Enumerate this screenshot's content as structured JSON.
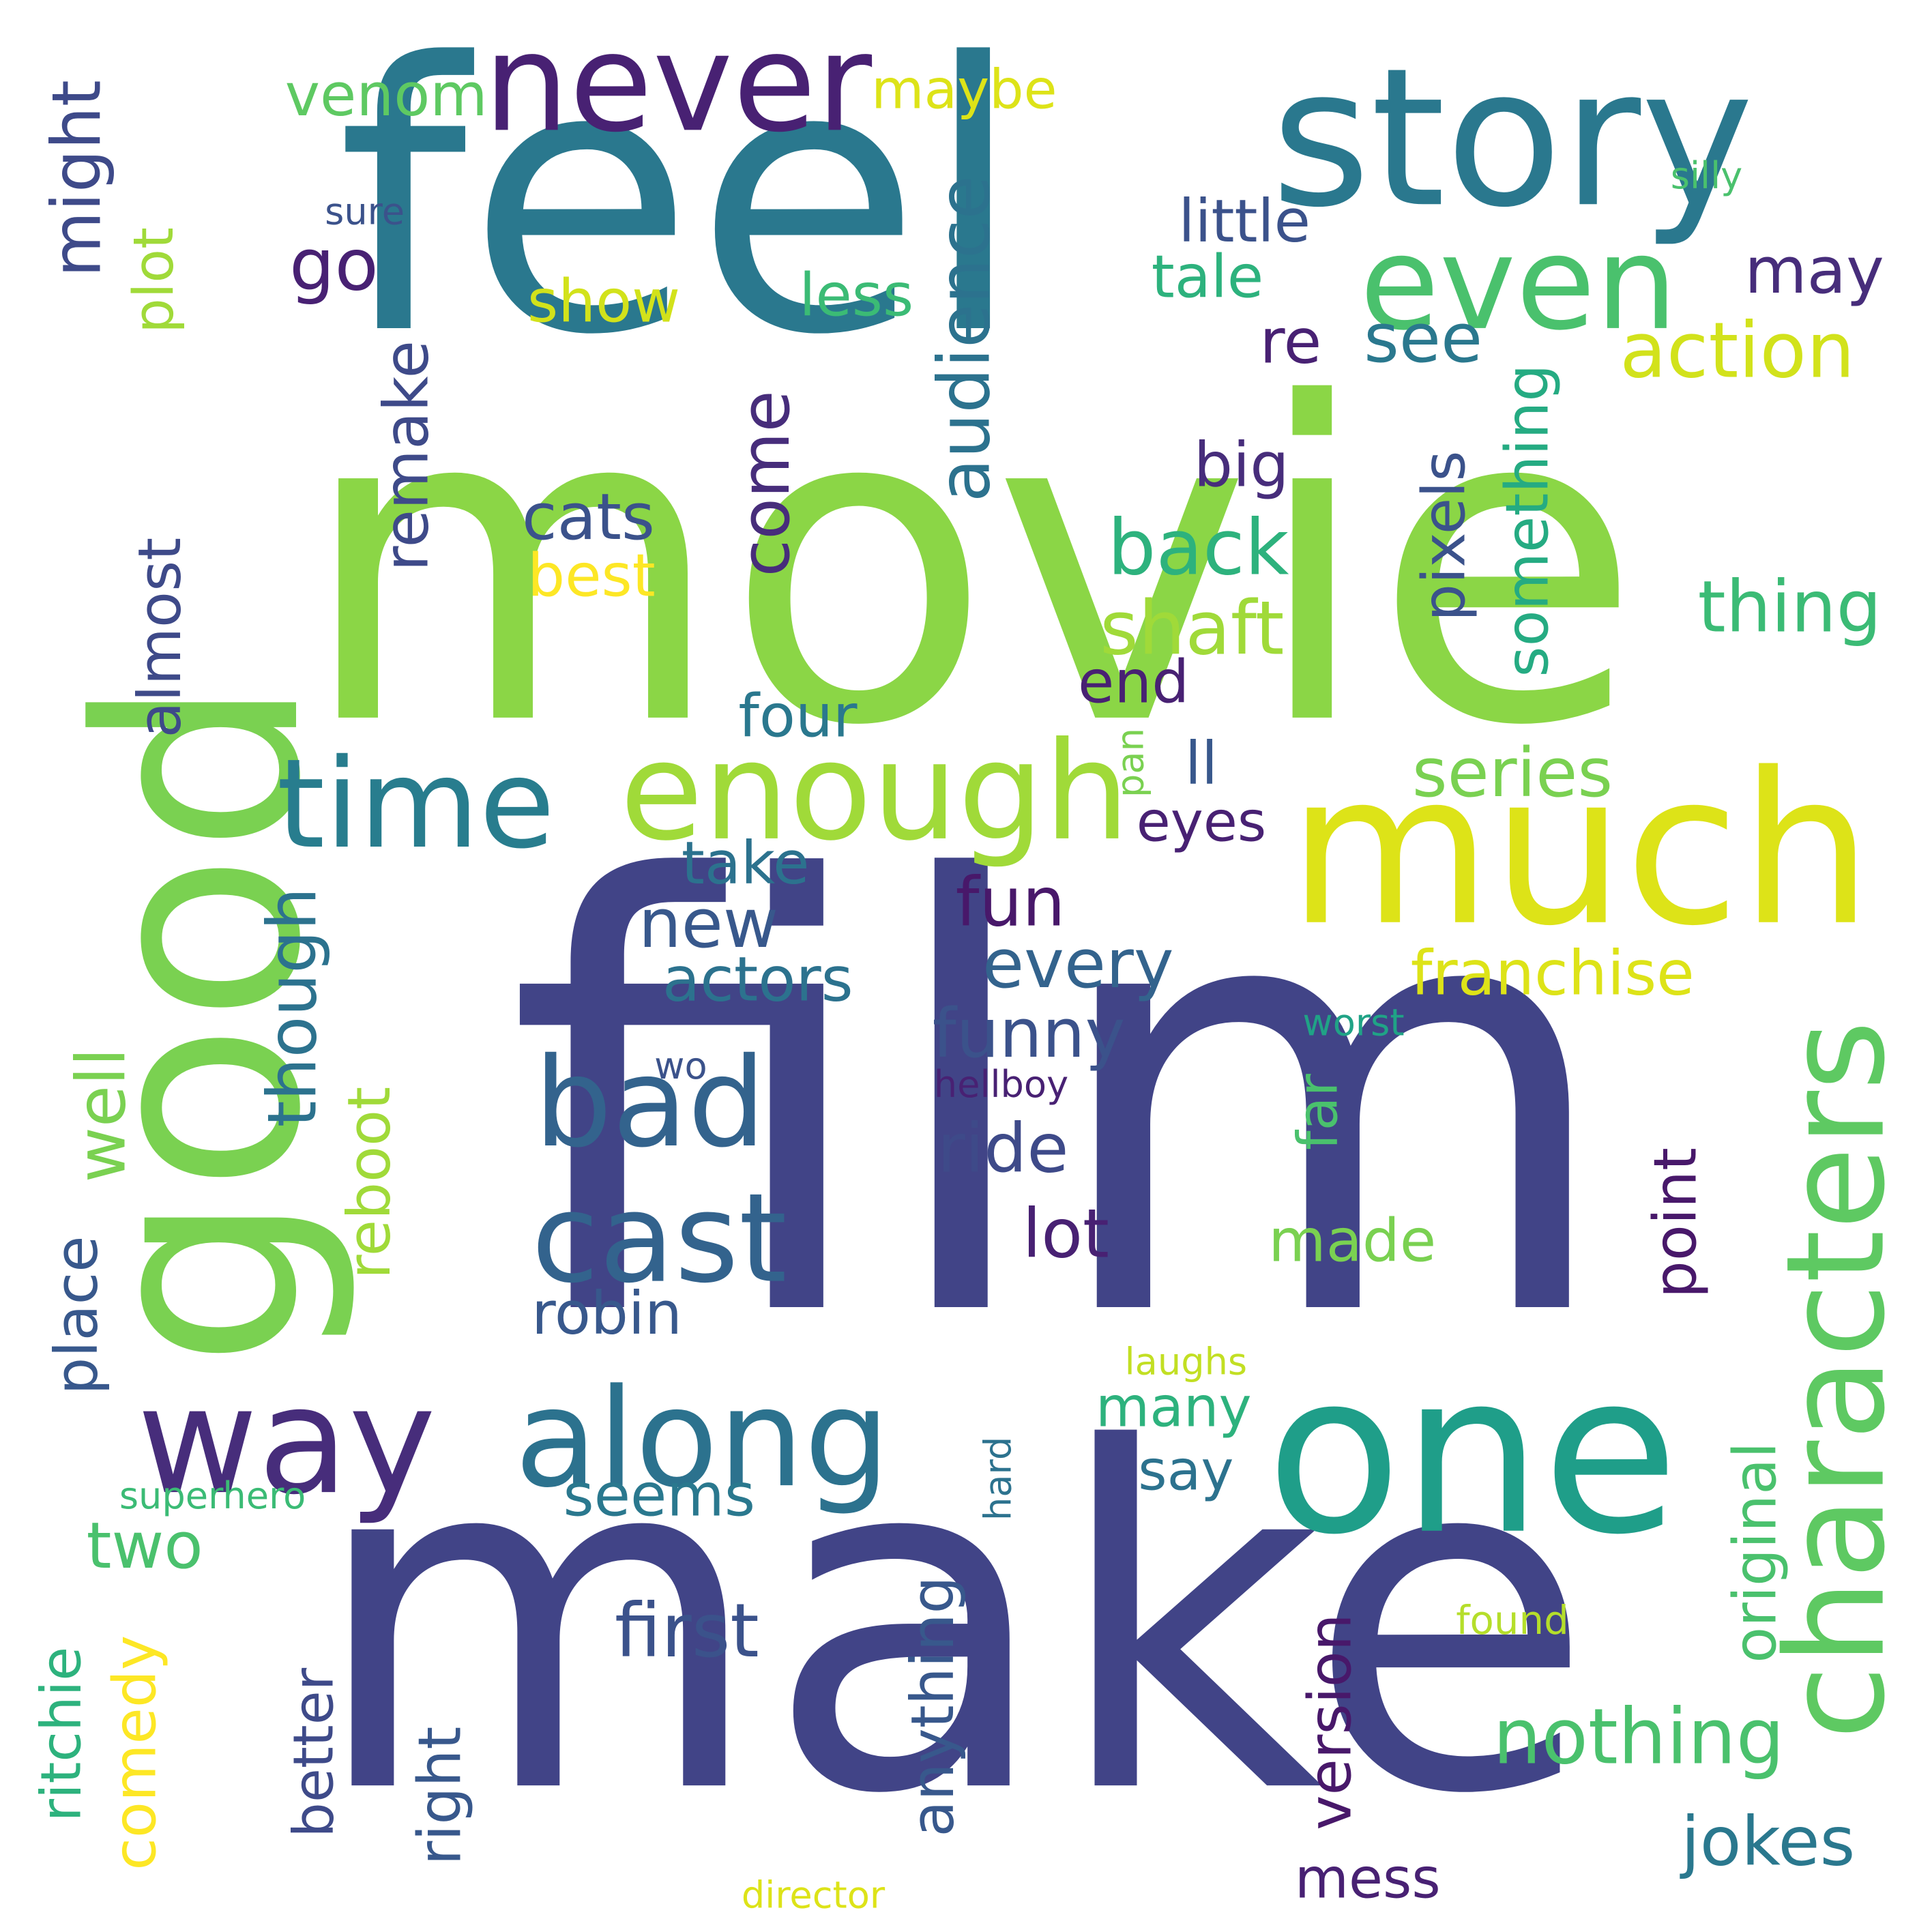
{
  "words": [
    {
      "text": "movie",
      "color": "#8bd646"
    },
    {
      "text": "feel",
      "color": "#2a788e"
    },
    {
      "text": "film",
      "color": "#414487"
    },
    {
      "text": "make",
      "color": "#414487"
    },
    {
      "text": "story",
      "color": "#2a788e"
    },
    {
      "text": "much",
      "color": "#dde318"
    },
    {
      "text": "good",
      "color": "#7ad151"
    },
    {
      "text": "one",
      "color": "#1f9e89"
    },
    {
      "text": "never",
      "color": "#482173"
    },
    {
      "text": "even",
      "color": "#4ac16d"
    },
    {
      "text": "enough",
      "color": "#a0da39"
    },
    {
      "text": "time",
      "color": "#287d8e"
    },
    {
      "text": "along",
      "color": "#2c728e"
    },
    {
      "text": "way",
      "color": "#472d7b"
    },
    {
      "text": "bad",
      "color": "#33638d"
    },
    {
      "text": "cast",
      "color": "#33638d"
    },
    {
      "text": "characters",
      "color": "#5ec962"
    },
    {
      "text": "venom",
      "color": "#5ec962"
    },
    {
      "text": "maybe",
      "color": "#dde318"
    },
    {
      "text": "silly",
      "color": "#4ac16d"
    },
    {
      "text": "sure",
      "color": "#3b528b"
    },
    {
      "text": "little",
      "color": "#3b528b"
    },
    {
      "text": "tale",
      "color": "#2db27d"
    },
    {
      "text": "may",
      "color": "#472d7b"
    },
    {
      "text": "go",
      "color": "#482173"
    },
    {
      "text": "show",
      "color": "#d2e21b"
    },
    {
      "text": "less",
      "color": "#3bbb75"
    },
    {
      "text": "re",
      "color": "#482173"
    },
    {
      "text": "see",
      "color": "#2a788e"
    },
    {
      "text": "action",
      "color": "#d2e21b"
    },
    {
      "text": "might",
      "color": "#3e4a89"
    },
    {
      "text": "plot",
      "color": "#a0da39"
    },
    {
      "text": "audience",
      "color": "#2c728e"
    },
    {
      "text": "come",
      "color": "#472d7b"
    },
    {
      "text": "remake",
      "color": "#3e4a89"
    },
    {
      "text": "cats",
      "color": "#3b528b"
    },
    {
      "text": "best",
      "color": "#fde725"
    },
    {
      "text": "big",
      "color": "#472d7b"
    },
    {
      "text": "back",
      "color": "#2db27d"
    },
    {
      "text": "shaft",
      "color": "#a0da39"
    },
    {
      "text": "pixels",
      "color": "#3b528b"
    },
    {
      "text": "something",
      "color": "#25ab82"
    },
    {
      "text": "thing",
      "color": "#3bbb75"
    },
    {
      "text": "almost",
      "color": "#3e4a89"
    },
    {
      "text": "end",
      "color": "#482173"
    },
    {
      "text": "four",
      "color": "#2a788e"
    },
    {
      "text": "pan",
      "color": "#7ad151"
    },
    {
      "text": "ll",
      "color": "#38588c"
    },
    {
      "text": "series",
      "color": "#7ad151"
    },
    {
      "text": "eyes",
      "color": "#482173"
    },
    {
      "text": "take",
      "color": "#2c728e"
    },
    {
      "text": "fun",
      "color": "#48186a"
    },
    {
      "text": "new",
      "color": "#38588c"
    },
    {
      "text": "actors",
      "color": "#2c728e"
    },
    {
      "text": "every",
      "color": "#33638d"
    },
    {
      "text": "though",
      "color": "#2c728e"
    },
    {
      "text": "franchise",
      "color": "#dde318"
    },
    {
      "text": "funny",
      "color": "#3b528b"
    },
    {
      "text": "worst",
      "color": "#20a386"
    },
    {
      "text": "well",
      "color": "#7ad151"
    },
    {
      "text": "wo",
      "color": "#3b528b"
    },
    {
      "text": "hellboy",
      "color": "#482173"
    },
    {
      "text": "reboot",
      "color": "#a0da39"
    },
    {
      "text": "ride",
      "color": "#3e4a89"
    },
    {
      "text": "far",
      "color": "#4ac16d"
    },
    {
      "text": "lot",
      "color": "#482173"
    },
    {
      "text": "made",
      "color": "#7ad151"
    },
    {
      "text": "point",
      "color": "#48186a"
    },
    {
      "text": "place",
      "color": "#38588c"
    },
    {
      "text": "robin",
      "color": "#38588c"
    },
    {
      "text": "laughs",
      "color": "#c2df23"
    },
    {
      "text": "many",
      "color": "#2db27d"
    },
    {
      "text": "say",
      "color": "#2c728e"
    },
    {
      "text": "seems",
      "color": "#2a788e"
    },
    {
      "text": "superhero",
      "color": "#3bbb75"
    },
    {
      "text": "hard",
      "color": "#2c728e"
    },
    {
      "text": "two",
      "color": "#4ac16d"
    },
    {
      "text": "original",
      "color": "#4ac16d"
    },
    {
      "text": "nothing",
      "color": "#4ac16d"
    },
    {
      "text": "first",
      "color": "#3b528b"
    },
    {
      "text": "found",
      "color": "#b5de2b"
    },
    {
      "text": "anything",
      "color": "#38588c"
    },
    {
      "text": "version",
      "color": "#48186a"
    },
    {
      "text": "ritchie",
      "color": "#2db27d"
    },
    {
      "text": "comedy",
      "color": "#fde725"
    },
    {
      "text": "better",
      "color": "#3e4a89"
    },
    {
      "text": "right",
      "color": "#38588c"
    },
    {
      "text": "jokes",
      "color": "#2a788e"
    },
    {
      "text": "mess",
      "color": "#482173"
    },
    {
      "text": "director",
      "color": "#dde318"
    }
  ]
}
